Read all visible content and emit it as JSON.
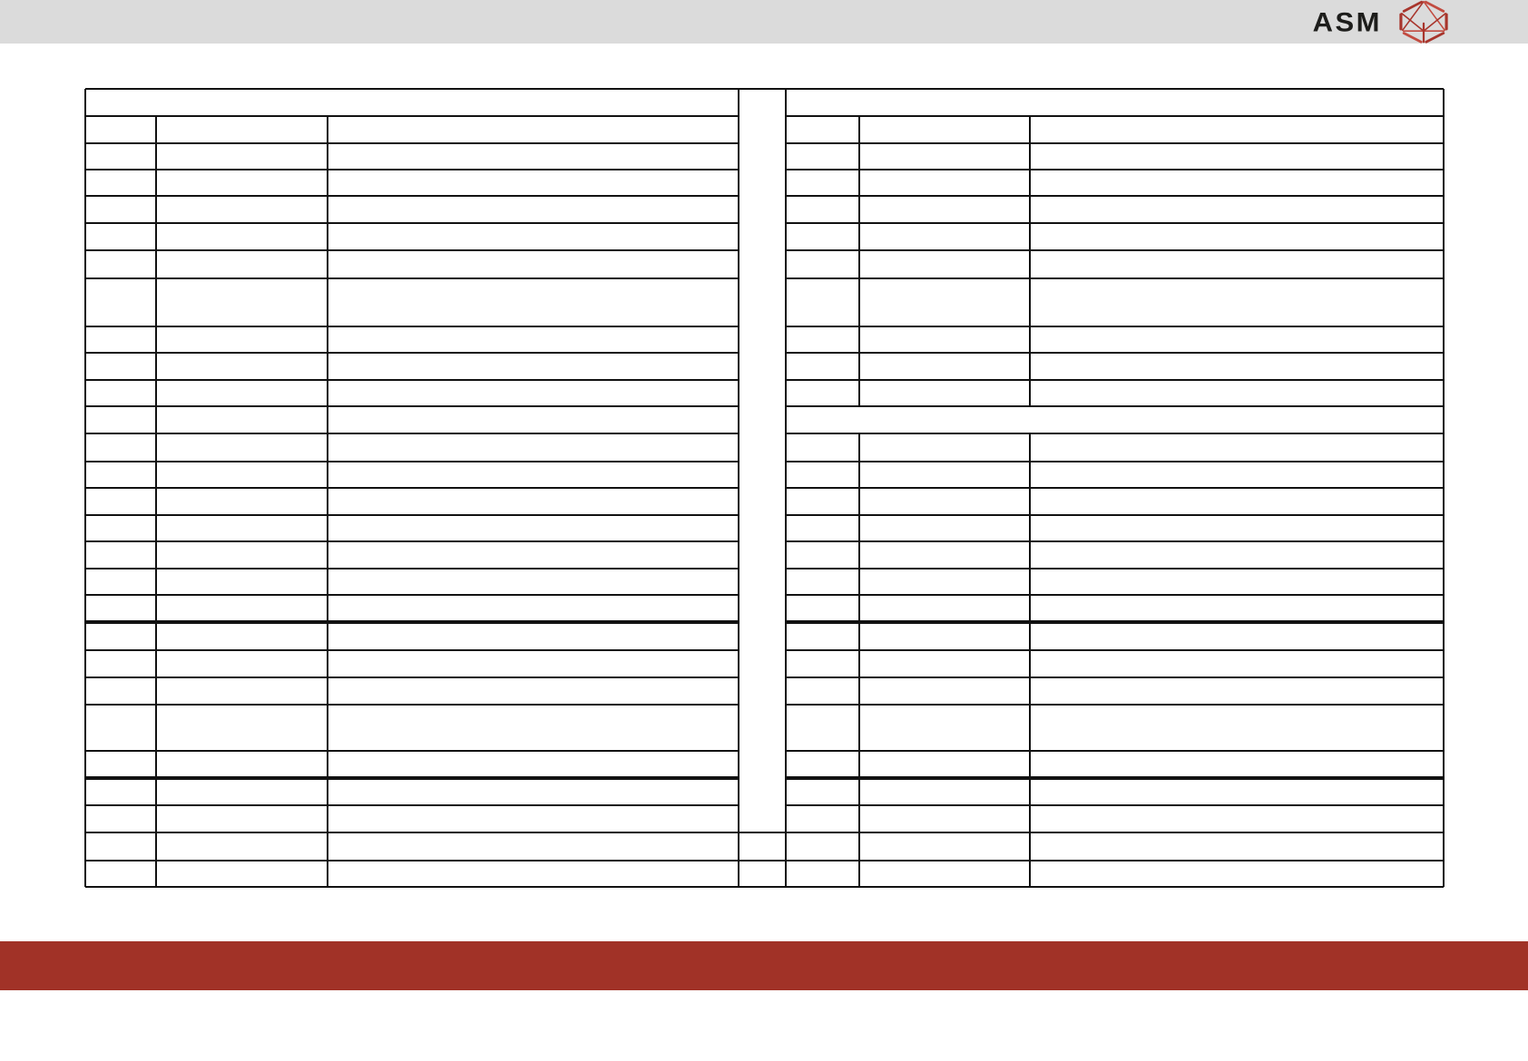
{
  "header": {
    "logo_text": "ASM"
  },
  "colors": {
    "header_bar": "#dbdbdb",
    "footer_bar": "#a13227",
    "logo_text": "#1d1d1b",
    "logo_red": "#a8352c",
    "logo_red_light": "#c24b40",
    "grid_line": "#121212",
    "page_bg": "#ffffff"
  },
  "document": {
    "left_table": {
      "row_count": 28,
      "column_count": 3,
      "all_cells_empty": true
    },
    "right_table": {
      "row_count": 28,
      "column_count": 3,
      "all_cells_empty": true,
      "has_full_width_merged_row": true
    },
    "center_gap_column_empty": true
  }
}
